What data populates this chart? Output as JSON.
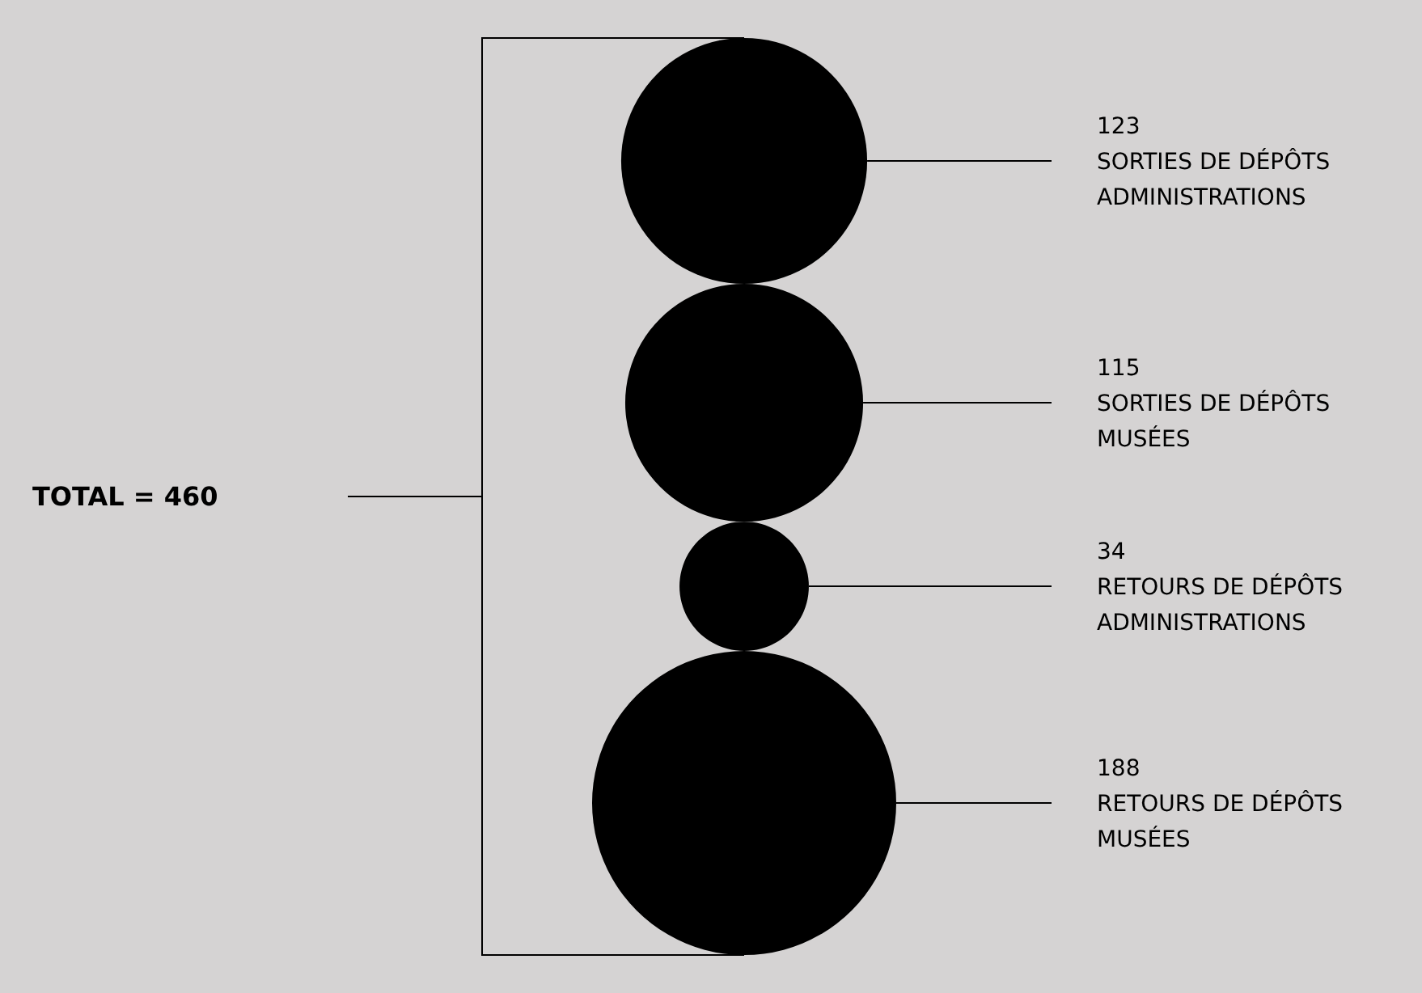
{
  "chart_data": {
    "type": "other",
    "categories": [
      "SORTIES DE DÉPÔTS ADMINISTRATIONS",
      "SORTIES DE DÉPÔTS MUSÉES",
      "RETOURS DE DÉPÔTS ADMINISTRATIONS",
      "RETOURS DE DÉPÔTS MUSÉES"
    ],
    "values": [
      123,
      115,
      34,
      188
    ],
    "color": "#000000",
    "data_labels": true,
    "annotations": [
      "TOTAL = 460"
    ]
  }
}
